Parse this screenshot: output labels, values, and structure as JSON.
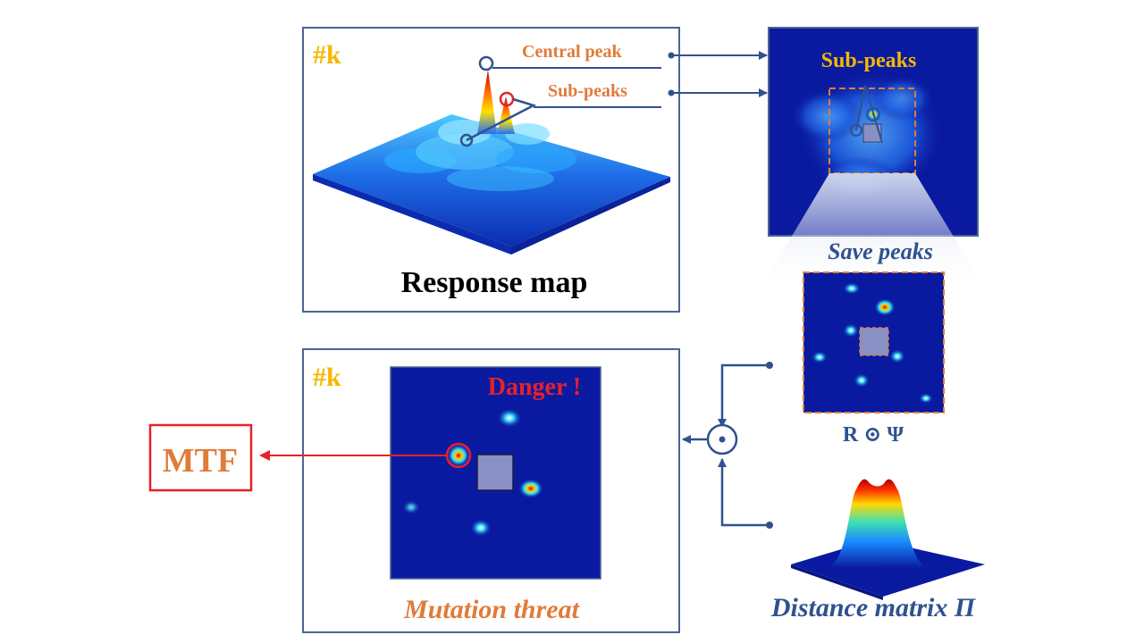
{
  "top_panel": {
    "frame_label": "#k",
    "central_peak_label": "Central peak",
    "sub_peaks_label": "Sub-peaks",
    "caption": "Response map"
  },
  "heatmap_panel": {
    "title": "Sub-peaks"
  },
  "save_peaks": {
    "label": "Save peaks",
    "caption": "R ⊙ Ψ"
  },
  "bottom_panel": {
    "frame_label": "#k",
    "danger_label": "Danger !",
    "caption": "Mutation threat"
  },
  "output": {
    "label": "MTF"
  },
  "operator": {
    "symbol": "⊙"
  },
  "distance_matrix": {
    "caption": "Distance matrix Π"
  },
  "colors": {
    "frame": "#4a6591",
    "connector": "#2f528f",
    "accent_orange": "#e07b39",
    "accent_gold": "#f5b800",
    "danger_red": "#e8202a",
    "heatmap_bg": "#0a1aa0"
  }
}
